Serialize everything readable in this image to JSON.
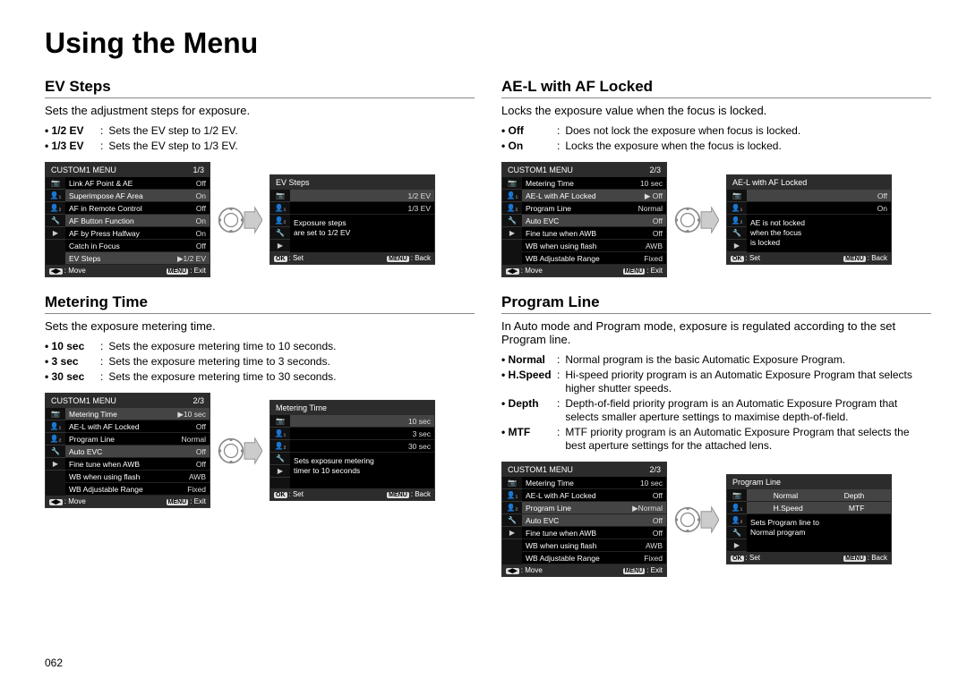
{
  "page_title": "Using the Menu",
  "page_number": "062",
  "sections": {
    "ev_steps": {
      "title": "EV Steps",
      "desc": "Sets the adjustment steps for exposure.",
      "bullets": [
        {
          "label": "• 1/2 EV",
          "desc": "Sets the EV step to 1/2 EV."
        },
        {
          "label": "• 1/3 EV",
          "desc": "Sets the EV step to 1/3 EV."
        }
      ],
      "menu": {
        "header_left": "CUSTOM1 MENU",
        "header_right": "1/3",
        "rows": [
          {
            "l": "Link AF Point & AE",
            "v": "Off"
          },
          {
            "l": "Superimpose AF Area",
            "v": "On",
            "sel": true
          },
          {
            "l": "AF in Remote Control",
            "v": "Off"
          },
          {
            "l": "AF Button Function",
            "v": "On",
            "sel": true
          },
          {
            "l": "AF by Press Halfway",
            "v": "On"
          },
          {
            "l": "Catch in Focus",
            "v": "Off"
          },
          {
            "l": "EV Steps",
            "v": "▶1/2 EV",
            "sel": true
          }
        ],
        "footer_left": "◀▶ : Move",
        "footer_right": "MENU : Exit"
      },
      "submenu": {
        "header_left": "EV Steps",
        "rows": [
          {
            "l": "",
            "v": "1/2 EV",
            "sel": true
          },
          {
            "l": "",
            "v": "1/3 EV"
          }
        ],
        "note": "Exposure steps\nare set to 1/2 EV",
        "footer_left": "OK : Set",
        "footer_right": "MENU : Back"
      }
    },
    "metering_time": {
      "title": "Metering Time",
      "desc": "Sets the exposure metering time.",
      "bullets": [
        {
          "label": "• 10 sec",
          "desc": "Sets the exposure metering time to 10 seconds."
        },
        {
          "label": "• 3 sec",
          "desc": "Sets the exposure metering time to 3 seconds."
        },
        {
          "label": "• 30 sec",
          "desc": "Sets the exposure metering time to 30 seconds."
        }
      ],
      "menu": {
        "header_left": "CUSTOM1 MENU",
        "header_right": "2/3",
        "rows": [
          {
            "l": "Metering Time",
            "v": "▶10 sec",
            "sel": true
          },
          {
            "l": "AE-L with AF Locked",
            "v": "Off"
          },
          {
            "l": "Program Line",
            "v": "Normal"
          },
          {
            "l": "Auto EVC",
            "v": "Off",
            "sel": true
          },
          {
            "l": "Fine tune when AWB",
            "v": "Off"
          },
          {
            "l": "WB when using flash",
            "v": "AWB"
          },
          {
            "l": "WB Adjustable Range",
            "v": "Fixed"
          }
        ],
        "footer_left": "◀▶ : Move",
        "footer_right": "MENU : Exit"
      },
      "submenu": {
        "header_left": "Metering Time",
        "rows": [
          {
            "l": "",
            "v": "10 sec",
            "sel": true
          },
          {
            "l": "",
            "v": "3 sec"
          },
          {
            "l": "",
            "v": "30 sec"
          }
        ],
        "note": "Sets exposure metering\ntimer to 10 seconds",
        "footer_left": "OK : Set",
        "footer_right": "MENU : Back"
      }
    },
    "ael": {
      "title": "AE-L with AF Locked",
      "desc": "Locks the exposure value when the focus is locked.",
      "bullets": [
        {
          "label": "• Off",
          "desc": "Does not lock the exposure when focus is locked."
        },
        {
          "label": "• On",
          "desc": "Locks the exposure when the focus is locked."
        }
      ],
      "menu": {
        "header_left": "CUSTOM1 MENU",
        "header_right": "2/3",
        "rows": [
          {
            "l": "Metering Time",
            "v": "10 sec"
          },
          {
            "l": "AE-L with AF Locked",
            "v": "▶ Off",
            "sel": true
          },
          {
            "l": "Program Line",
            "v": "Normal"
          },
          {
            "l": "Auto EVC",
            "v": "Off",
            "sel": true
          },
          {
            "l": "Fine tune when AWB",
            "v": "Off"
          },
          {
            "l": "WB when using flash",
            "v": "AWB"
          },
          {
            "l": "WB Adjustable Range",
            "v": "Fixed"
          }
        ],
        "footer_left": "◀▶ : Move",
        "footer_right": "MENU : Exit"
      },
      "submenu": {
        "header_left": "AE-L with AF Locked",
        "rows": [
          {
            "l": "",
            "v": "Off",
            "sel": true
          },
          {
            "l": "",
            "v": "On"
          }
        ],
        "note": "AE is not locked\nwhen the focus\nis locked",
        "footer_left": "OK : Set",
        "footer_right": "MENU : Back"
      }
    },
    "program_line": {
      "title": "Program Line",
      "desc": "In Auto mode and Program mode, exposure is regulated according to the set Program line.",
      "bullets": [
        {
          "label": "• Normal",
          "desc": "Normal program is the basic Automatic Exposure Program."
        },
        {
          "label": "• H.Speed",
          "desc": "Hi-speed priority program is an Automatic Exposure Program that selects higher shutter speeds."
        },
        {
          "label": "• Depth",
          "desc": "Depth-of-field priority program is an Automatic Exposure Program that selects smaller aperture settings to maximise depth-of-field."
        },
        {
          "label": "• MTF",
          "desc": "MTF priority program is an Automatic Exposure Program that selects the best aperture settings for the attached lens."
        }
      ],
      "menu": {
        "header_left": "CUSTOM1 MENU",
        "header_right": "2/3",
        "rows": [
          {
            "l": "Metering Time",
            "v": "10 sec"
          },
          {
            "l": "AE-L with AF Locked",
            "v": "Off"
          },
          {
            "l": "Program Line",
            "v": "▶Normal",
            "sel": true
          },
          {
            "l": "Auto EVC",
            "v": "Off",
            "sel": true
          },
          {
            "l": "Fine tune when AWB",
            "v": "Off"
          },
          {
            "l": "WB when using flash",
            "v": "AWB"
          },
          {
            "l": "WB Adjustable Range",
            "v": "Fixed"
          }
        ],
        "footer_left": "◀▶ : Move",
        "footer_right": "MENU : Exit"
      },
      "submenu": {
        "header_left": "Program Line",
        "grid": [
          [
            "Normal",
            "Depth"
          ],
          [
            "H.Speed",
            "MTF"
          ]
        ],
        "note": "Sets Program line to\nNormal program",
        "footer_left": "OK : Set",
        "footer_right": "MENU : Back"
      }
    }
  }
}
